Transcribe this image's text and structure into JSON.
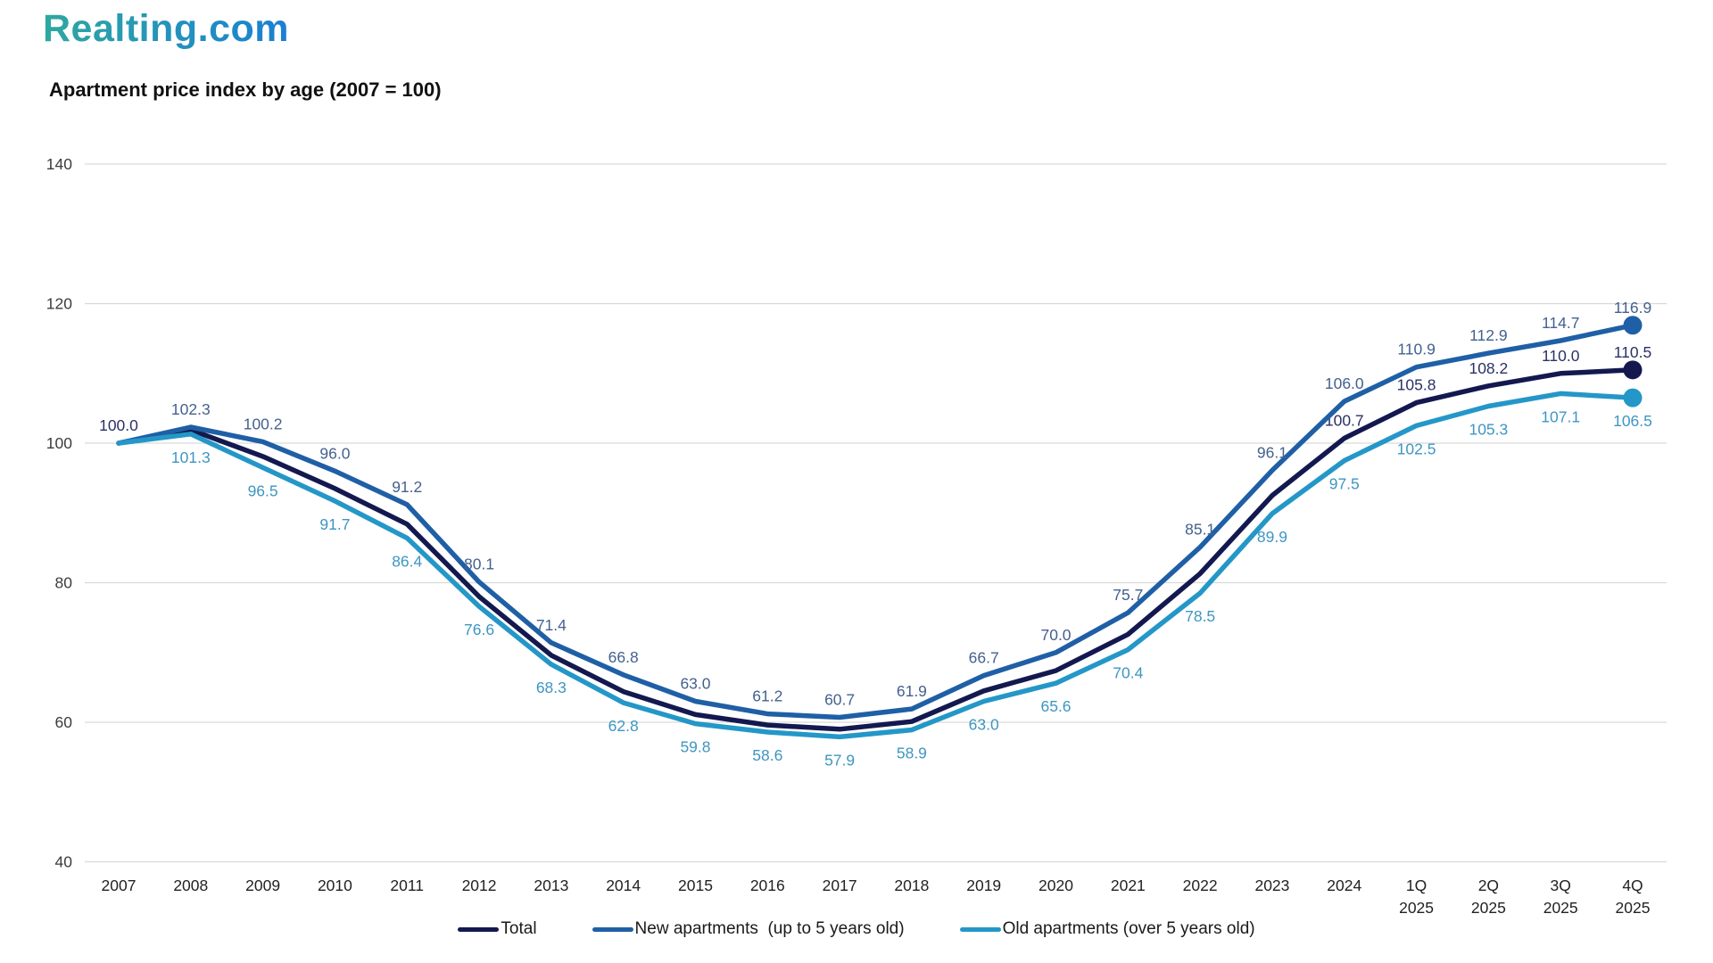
{
  "brand": {
    "logo_text": "Realting.com",
    "gradient_start": "#2FA8A0",
    "gradient_end": "#1A7FD4"
  },
  "chart_data": {
    "type": "line",
    "title": "Apartment price index by age (2007 = 100)",
    "categories": [
      "2007",
      "2008",
      "2009",
      "2010",
      "2011",
      "2012",
      "2013",
      "2014",
      "2015",
      "2016",
      "2017",
      "2018",
      "2019",
      "2020",
      "2021",
      "2022",
      "2023",
      "2024",
      "1Q 2025",
      "2Q 2025",
      "3Q 2025",
      "4Q 2025"
    ],
    "ylim": [
      40,
      140
    ],
    "y_ticks": [
      140,
      120,
      100,
      80,
      60,
      40
    ],
    "grid": true,
    "legend_position": "bottom",
    "axis": {
      "tick_color": "#3c3c3c",
      "grid_color": "#d9d9d9"
    },
    "series": [
      {
        "name": "Total",
        "color": "#13194f",
        "label_color": "#2b3166",
        "label_side": "above",
        "end_marker": true,
        "values": [
          100.0,
          101.9,
          98.1,
          93.5,
          88.4,
          78.0,
          69.6,
          64.4,
          61.1,
          59.6,
          59.0,
          60.1,
          64.5,
          67.4,
          72.6,
          81.3,
          92.5,
          100.7,
          105.8,
          108.2,
          110.0,
          110.5
        ],
        "data_labels": [
          "100.0",
          null,
          null,
          null,
          null,
          null,
          null,
          null,
          null,
          null,
          null,
          null,
          null,
          null,
          null,
          null,
          null,
          "100.7",
          "105.8",
          "108.2",
          "110.0",
          "110.5"
        ]
      },
      {
        "name": "New apartments  (up to 5 years old)",
        "color": "#1f5fa6",
        "label_color": "#44618e",
        "label_side": "above",
        "end_marker": true,
        "values": [
          100.0,
          102.3,
          100.2,
          96.0,
          91.2,
          80.1,
          71.4,
          66.8,
          63.0,
          61.2,
          60.7,
          61.9,
          66.7,
          70.0,
          75.7,
          85.1,
          96.1,
          106.0,
          110.9,
          112.9,
          114.7,
          116.9
        ],
        "data_labels": [
          null,
          "102.3",
          "100.2",
          "96.0",
          "91.2",
          "80.1",
          "71.4",
          "66.8",
          "63.0",
          "61.2",
          "60.7",
          "61.9",
          "66.7",
          "70.0",
          "75.7",
          "85.1",
          "96.1",
          "106.0",
          "110.9",
          "112.9",
          "114.7",
          "116.9"
        ]
      },
      {
        "name": "Old apartments (over 5 years old)",
        "color": "#2497c8",
        "label_color": "#3e96c2",
        "label_side": "below",
        "end_marker": true,
        "values": [
          100.0,
          101.3,
          96.5,
          91.7,
          86.4,
          76.6,
          68.3,
          62.8,
          59.8,
          58.6,
          57.9,
          58.9,
          63.0,
          65.6,
          70.4,
          78.5,
          89.9,
          97.5,
          102.5,
          105.3,
          107.1,
          106.5
        ],
        "data_labels": [
          null,
          "101.3",
          "96.5",
          "91.7",
          "86.4",
          "76.6",
          "68.3",
          "62.8",
          "59.8",
          "58.6",
          "57.9",
          "58.9",
          "63.0",
          "65.6",
          "70.4",
          "78.5",
          "89.9",
          "97.5",
          "102.5",
          "105.3",
          "107.1",
          "106.5"
        ]
      }
    ]
  }
}
